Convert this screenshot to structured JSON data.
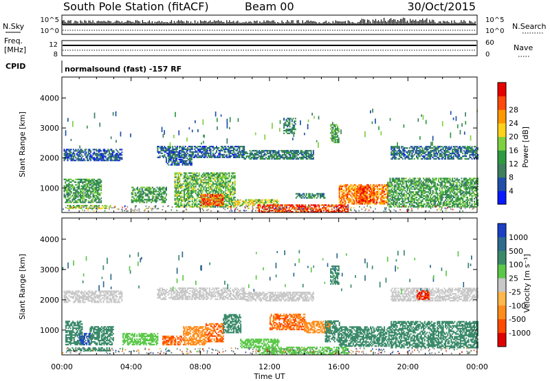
{
  "header": {
    "station": "South Pole Station (fitACF)",
    "beam": "Beam 00",
    "date": "30/Oct/2015"
  },
  "strip_labels": {
    "nsky": "N.Sky",
    "nsearch": "N.Search",
    "freq": "Freq.",
    "freq_unit": "[MHz]",
    "nave": "Nave",
    "cpid": "CPID",
    "cpid_value": "normalsound (fast) -157 RF",
    "noise_tick_top": "10^5",
    "noise_tick_bottom": "10^0",
    "freq_tick_top": "12",
    "freq_tick_bottom": "8",
    "nave_tick_top": "60",
    "nave_tick_bottom": "0"
  },
  "colors": {
    "power": [
      "#0a1aff",
      "#1f4fa8",
      "#3d7f5f",
      "#2f9a42",
      "#7fd040",
      "#ffd21a",
      "#ff9800",
      "#ff4a0a",
      "#e80000"
    ],
    "velocity": [
      "#1c3fc6",
      "#2f6a8f",
      "#3a8a6a",
      "#5cc84a",
      "#c8c8c8",
      "#ffb64a",
      "#ff8c1a",
      "#ff4a00",
      "#e00000"
    ],
    "ground_scatter": "#808080"
  },
  "chart_data": [
    {
      "type": "heatmap",
      "name": "power",
      "ylabel": "Slant Range [km]",
      "xlabel": "",
      "colorbar_label": "Power [dB]",
      "colorbar_ticks": [
        "4",
        "8",
        "12",
        "16",
        "20",
        "24",
        "28"
      ],
      "colorbar_range": [
        0,
        32
      ],
      "yticks": [
        "1000",
        "2000",
        "3000",
        "4000"
      ],
      "ylim": [
        180,
        4700
      ],
      "xticks": [
        "00:00",
        "04:00",
        "08:00",
        "12:00",
        "16:00",
        "20:00",
        "00:00"
      ],
      "xlim": [
        0,
        24
      ],
      "regions": [
        {
          "t": [
            0.1,
            3.5
          ],
          "r": [
            1900,
            2300
          ],
          "v": 6
        },
        {
          "t": [
            5.5,
            10.5
          ],
          "r": [
            2000,
            2400
          ],
          "v": 7
        },
        {
          "t": [
            6.0,
            7.5
          ],
          "r": [
            1750,
            2000
          ],
          "v": 7
        },
        {
          "t": [
            10.5,
            14.5
          ],
          "r": [
            1950,
            2250
          ],
          "v": 9
        },
        {
          "t": [
            19.0,
            24.0
          ],
          "r": [
            1950,
            2400
          ],
          "v": 8
        },
        {
          "t": [
            0.1,
            2.3
          ],
          "r": [
            500,
            1300
          ],
          "v": 12
        },
        {
          "t": [
            4.0,
            6.0
          ],
          "r": [
            500,
            1000
          ],
          "v": 12
        },
        {
          "t": [
            6.5,
            10.0
          ],
          "r": [
            350,
            1500
          ],
          "v": 14
        },
        {
          "t": [
            8.0,
            9.3
          ],
          "r": [
            400,
            800
          ],
          "v": 26
        },
        {
          "t": [
            10.0,
            12.5
          ],
          "r": [
            400,
            600
          ],
          "v": 18
        },
        {
          "t": [
            11.3,
            16.5
          ],
          "r": [
            180,
            420
          ],
          "v": 28
        },
        {
          "t": [
            16.0,
            18.8
          ],
          "r": [
            450,
            1100
          ],
          "v": 24
        },
        {
          "t": [
            17.0,
            18.0
          ],
          "r": [
            500,
            1000
          ],
          "v": 28
        },
        {
          "t": [
            18.8,
            24.0
          ],
          "r": [
            350,
            1300
          ],
          "v": 12
        },
        {
          "t": [
            0.3,
            2.8
          ],
          "r": [
            300,
            420
          ],
          "v": 16
        },
        {
          "t": [
            13.5,
            15.2
          ],
          "r": [
            650,
            800
          ],
          "v": 10
        },
        {
          "t": [
            15.5,
            16.0
          ],
          "r": [
            2500,
            3100
          ],
          "v": 12
        },
        {
          "t": [
            12.8,
            13.5
          ],
          "r": [
            2800,
            3300
          ],
          "v": 10
        }
      ]
    },
    {
      "type": "heatmap",
      "name": "velocity",
      "ylabel": "Slant Range [km]",
      "xlabel": "Time UT",
      "colorbar_label": "Velocity [m s⁻¹]",
      "colorbar_ticks": [
        "-1000",
        "-500",
        "-100",
        "-25",
        "25",
        "100",
        "500",
        "1000"
      ],
      "colorbar_range": [
        -1300,
        1300
      ],
      "yticks": [
        "1000",
        "2000",
        "3000",
        "4000"
      ],
      "ylim": [
        180,
        4700
      ],
      "xticks": [
        "00:00",
        "04:00",
        "08:00",
        "12:00",
        "16:00",
        "20:00",
        "00:00"
      ],
      "xlim": [
        0,
        24
      ],
      "regions": [
        {
          "t": [
            0.1,
            3.5
          ],
          "r": [
            1900,
            2300
          ],
          "v": 0
        },
        {
          "t": [
            5.5,
            10.5
          ],
          "r": [
            2000,
            2400
          ],
          "v": 0
        },
        {
          "t": [
            10.5,
            14.5
          ],
          "r": [
            1950,
            2250
          ],
          "v": 0
        },
        {
          "t": [
            19.0,
            24.0
          ],
          "r": [
            1950,
            2400
          ],
          "v": 0
        },
        {
          "t": [
            0.2,
            1.2
          ],
          "r": [
            500,
            1300
          ],
          "v": 200
        },
        {
          "t": [
            1.0,
            1.6
          ],
          "r": [
            500,
            900
          ],
          "v": 1000
        },
        {
          "t": [
            1.6,
            3.0
          ],
          "r": [
            500,
            1100
          ],
          "v": 150
        },
        {
          "t": [
            3.5,
            5.5
          ],
          "r": [
            500,
            900
          ],
          "v": 60
        },
        {
          "t": [
            5.8,
            7.0
          ],
          "r": [
            500,
            800
          ],
          "v": -500
        },
        {
          "t": [
            7.0,
            8.3
          ],
          "r": [
            500,
            1100
          ],
          "v": -300
        },
        {
          "t": [
            8.3,
            9.3
          ],
          "r": [
            600,
            1200
          ],
          "v": -500
        },
        {
          "t": [
            9.3,
            10.3
          ],
          "r": [
            900,
            1500
          ],
          "v": 150
        },
        {
          "t": [
            10.3,
            12.5
          ],
          "r": [
            400,
            700
          ],
          "v": 60
        },
        {
          "t": [
            12.0,
            14.0
          ],
          "r": [
            1000,
            1500
          ],
          "v": -500
        },
        {
          "t": [
            14.0,
            15.5
          ],
          "r": [
            900,
            1300
          ],
          "v": -300
        },
        {
          "t": [
            11.3,
            16.5
          ],
          "r": [
            180,
            420
          ],
          "v": 60
        },
        {
          "t": [
            15.2,
            16.0
          ],
          "r": [
            600,
            1300
          ],
          "v": 300
        },
        {
          "t": [
            16.0,
            19.0
          ],
          "r": [
            450,
            1100
          ],
          "v": 150
        },
        {
          "t": [
            19.0,
            24.0
          ],
          "r": [
            400,
            1300
          ],
          "v": 200
        },
        {
          "t": [
            20.5,
            21.2
          ],
          "r": [
            2000,
            2300
          ],
          "v": -1000
        },
        {
          "t": [
            15.5,
            16.0
          ],
          "r": [
            2500,
            3100
          ],
          "v": 150
        },
        {
          "t": [
            0.3,
            2.8
          ],
          "r": [
            300,
            420
          ],
          "v": 200
        }
      ]
    }
  ]
}
